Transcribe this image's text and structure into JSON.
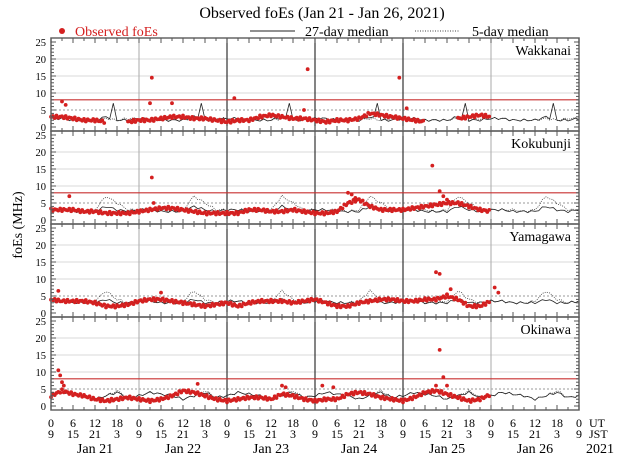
{
  "chart_data": {
    "type": "scatter",
    "title": "Observed foEs (Jan 21 - Jan 26, 2021)",
    "ylabel": "foEs (MHz)",
    "ylim": [
      0,
      25
    ],
    "yticks": [
      "0",
      "5",
      "10",
      "15",
      "20",
      "25"
    ],
    "xlim_hours": [
      0,
      144
    ],
    "legend": {
      "placement": "top",
      "observed": "Observed foEs",
      "median27": "27-day median",
      "median5": "5-day median"
    },
    "x_ticks_ut": [
      "0",
      "6",
      "12",
      "18"
    ],
    "x_ticks_jst": [
      "9",
      "15",
      "21",
      "3"
    ],
    "x_row_labels": {
      "ut": "UT",
      "jst": "JST"
    },
    "days": [
      "Jan 21",
      "Jan 22",
      "Jan 23",
      "Jan 24",
      "Jan 25",
      "Jan 26"
    ],
    "year": "2021",
    "colors": {
      "observed": "#d42020",
      "threshold": "#c83030",
      "median": "#222222",
      "grid": "#d8d8d8"
    },
    "obs_step_hours": 3,
    "median_profile_step_hours": 3,
    "panels": [
      {
        "station": "Wakkanai",
        "threshold": 8,
        "observed": [
          3,
          3,
          2.5,
          2,
          2,
          1.5,
          null,
          1.5,
          2,
          2,
          2.5,
          3,
          3,
          2.5,
          2.5,
          2,
          1.5,
          2,
          2,
          3,
          3.5,
          3,
          2.5,
          2.5,
          2,
          1.5,
          2,
          2,
          2.5,
          4,
          3.5,
          3,
          2.5,
          2,
          1.5,
          null,
          null,
          2.5,
          3,
          3.5,
          3
        ],
        "outliers": [
          [
            3,
            7.5
          ],
          [
            4,
            6.5
          ],
          [
            27.5,
            14.5
          ],
          [
            27,
            7
          ],
          [
            33,
            7
          ],
          [
            50,
            8.5
          ],
          [
            70,
            17
          ],
          [
            69,
            5
          ],
          [
            95,
            14.5
          ],
          [
            97,
            5.5
          ]
        ],
        "median27_daily": [
          2.5,
          2.5,
          2,
          2,
          2,
          3,
          2,
          2
        ],
        "median27_spike": [
          17,
          7
        ],
        "median5_daily": [
          2.5,
          2.5,
          2,
          2,
          2,
          2.5,
          2,
          2.5
        ]
      },
      {
        "station": "Kokubunji",
        "threshold": 8,
        "observed": [
          3,
          3,
          3,
          2.5,
          2.5,
          2,
          2,
          2,
          2.5,
          3,
          3.5,
          3.5,
          3,
          2.5,
          2,
          2,
          2,
          2,
          3,
          3,
          2.5,
          2.5,
          3,
          2.5,
          2,
          2,
          2.5,
          5,
          6,
          4,
          3,
          3,
          3,
          3.5,
          4,
          4.5,
          5,
          5,
          4,
          3,
          2.5
        ],
        "outliers": [
          [
            5,
            7
          ],
          [
            27.5,
            12.5
          ],
          [
            28,
            5
          ],
          [
            81,
            8
          ],
          [
            82,
            7.5
          ],
          [
            83,
            6.5
          ],
          [
            104,
            16
          ],
          [
            106,
            8.5
          ],
          [
            107,
            7
          ],
          [
            108,
            6
          ]
        ],
        "median27_daily": [
          3,
          3,
          2.5,
          2.5,
          2.5,
          4,
          3,
          2.5
        ],
        "median5_daily": [
          3,
          3,
          3,
          2.5,
          3,
          7,
          5,
          3
        ]
      },
      {
        "station": "Yamagawa",
        "threshold": null,
        "observed": [
          4,
          3.5,
          3.5,
          3.5,
          3,
          2,
          2,
          2.5,
          3.5,
          4,
          4,
          3.5,
          3,
          2.5,
          2,
          2.5,
          3,
          2,
          3,
          3.5,
          3.5,
          3.5,
          3,
          3.5,
          4,
          3,
          2,
          2,
          3,
          3.5,
          4,
          4,
          3.5,
          3.5,
          4,
          4,
          5,
          4,
          2,
          2,
          3.5
        ],
        "outliers": [
          [
            2,
            6.5
          ],
          [
            30,
            6
          ],
          [
            105,
            12
          ],
          [
            106,
            11.5
          ],
          [
            109,
            7
          ],
          [
            108,
            5.5
          ],
          [
            121,
            7.5
          ],
          [
            122,
            6
          ]
        ],
        "median27_daily": [
          3.5,
          3.5,
          3,
          3,
          3,
          4,
          3,
          3
        ],
        "median5_daily": [
          3.5,
          3.5,
          3,
          3,
          3.5,
          6.5,
          4,
          3
        ]
      },
      {
        "station": "Okinawa",
        "threshold": 8,
        "observed": [
          3,
          4.5,
          3.5,
          3,
          2,
          1.5,
          2,
          2.5,
          2,
          1.5,
          2,
          3,
          4.5,
          4,
          3,
          2,
          1.5,
          2,
          2.5,
          2.5,
          2,
          3.5,
          3,
          2,
          1.5,
          2,
          2,
          3.5,
          4,
          3.5,
          2.5,
          2,
          1.5,
          2.5,
          4,
          4.5,
          3.5,
          2.5,
          1.5,
          2,
          3.5
        ],
        "outliers": [
          [
            2,
            10.5
          ],
          [
            2.5,
            9
          ],
          [
            3,
            7
          ],
          [
            3.5,
            6
          ],
          [
            40,
            6.5
          ],
          [
            63,
            6
          ],
          [
            64,
            5.5
          ],
          [
            74,
            6
          ],
          [
            77,
            5.5
          ],
          [
            106,
            16.5
          ],
          [
            107,
            8.5
          ],
          [
            105,
            6
          ],
          [
            108,
            6
          ]
        ],
        "median27_daily": [
          3,
          4,
          3.5,
          3,
          2,
          3,
          4,
          2.5
        ],
        "median5_daily": [
          3,
          4,
          3.5,
          3,
          2,
          3,
          4.5,
          2.5
        ]
      }
    ]
  }
}
